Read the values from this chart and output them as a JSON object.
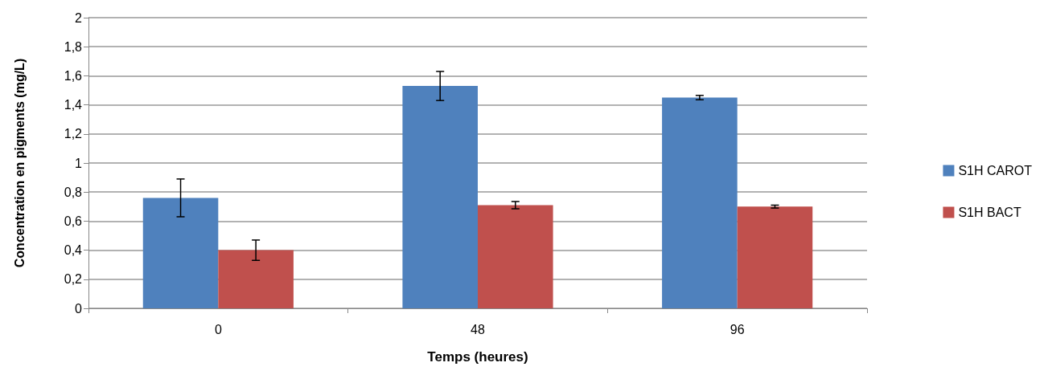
{
  "chart_data": {
    "type": "bar",
    "xlabel": "Temps (heures)",
    "ylabel": "Concentration en pigments (mg/L)",
    "categories": [
      "0",
      "48",
      "96"
    ],
    "series": [
      {
        "name": "S1H CAROT",
        "color": "#4f81bd",
        "values": [
          0.76,
          1.53,
          1.45
        ],
        "errors": [
          0.13,
          0.1,
          0.015
        ]
      },
      {
        "name": "S1H BACT",
        "color": "#c0504d",
        "values": [
          0.4,
          0.71,
          0.7
        ],
        "errors": [
          0.07,
          0.025,
          0.01
        ]
      }
    ],
    "ylim": [
      0,
      2
    ],
    "yticks": [
      0,
      {
        "value": 0.2,
        "label": "0,2"
      },
      {
        "value": 0.4,
        "label": "0,4"
      },
      {
        "value": 0.6,
        "label": "0,6"
      },
      {
        "value": 0.8,
        "label": "0,8"
      },
      1,
      {
        "value": 1.2,
        "label": "1,2"
      },
      {
        "value": 1.4,
        "label": "1,4"
      },
      {
        "value": 1.6,
        "label": "1,6"
      },
      {
        "value": 1.8,
        "label": "1,8"
      },
      2
    ],
    "grid": "y",
    "legend": "right"
  }
}
